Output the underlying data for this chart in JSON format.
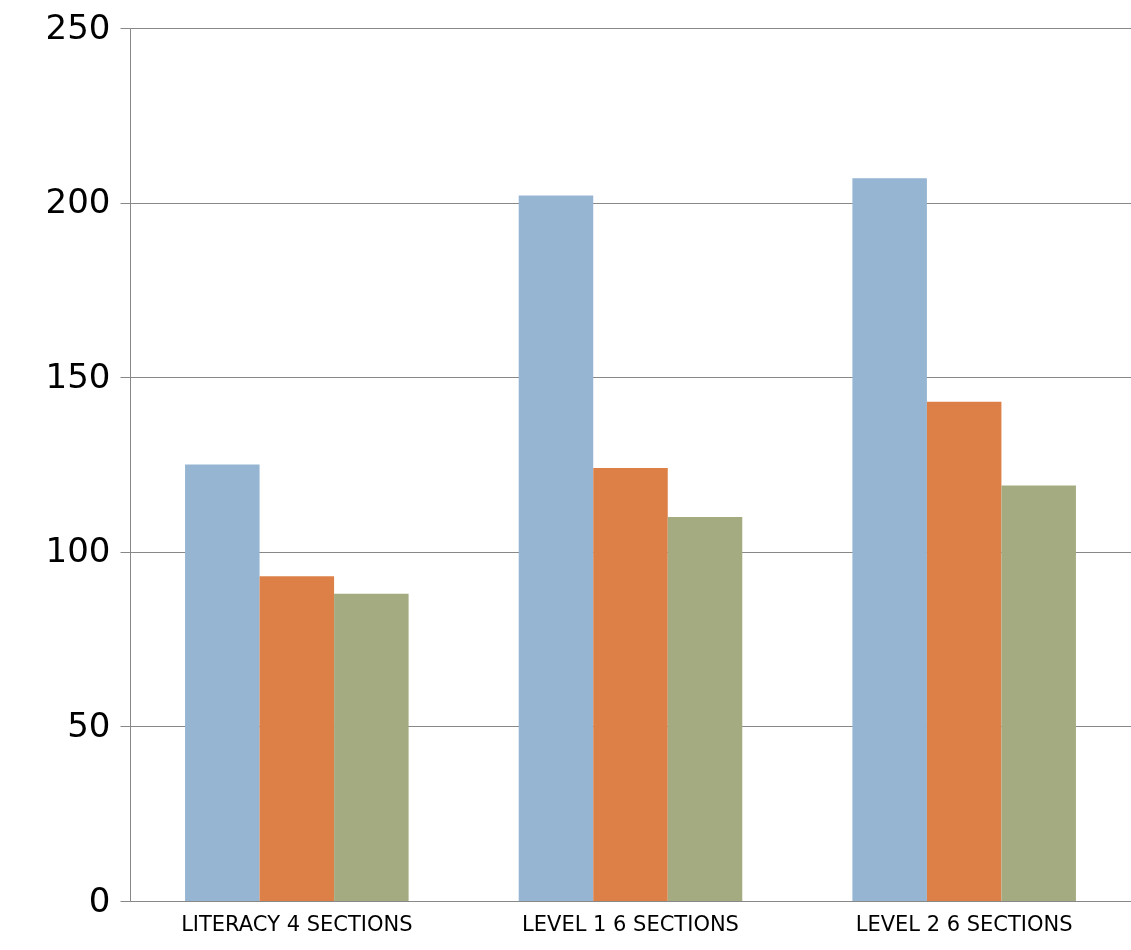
{
  "chart_data": {
    "type": "bar",
    "categories": [
      "LITERACY 4 SECTIONS",
      "LEVEL 1 6 SECTIONS",
      "LEVEL 2 6 SECTIONS"
    ],
    "series": [
      {
        "color": "#95b5d3",
        "values": [
          125,
          202,
          207
        ]
      },
      {
        "color": "#dd8047",
        "values": [
          93,
          124,
          143
        ]
      },
      {
        "color": "#a5ab81",
        "values": [
          88,
          110,
          119
        ]
      }
    ],
    "ylim": [
      0,
      250
    ],
    "yticks": [
      0,
      50,
      100,
      150,
      200,
      250
    ],
    "grid": "y",
    "legend": false
  }
}
